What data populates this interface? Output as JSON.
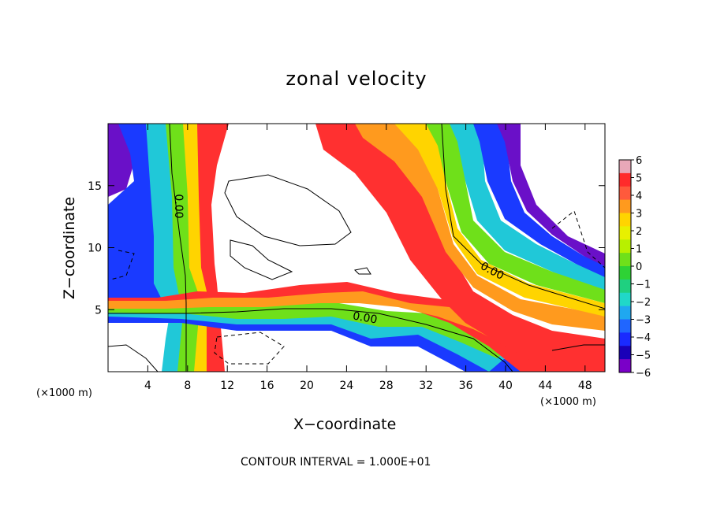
{
  "chart_data": {
    "type": "heatmap",
    "title": "zonal velocity",
    "xlabel": "X−coordinate",
    "ylabel": "Z−coordinate",
    "x_unit_label": "(×1000 m)",
    "x_ticks": [
      4,
      8,
      12,
      16,
      20,
      24,
      28,
      32,
      36,
      40,
      44,
      48
    ],
    "y_ticks": [
      5,
      10,
      15
    ],
    "xlim": [
      0,
      50
    ],
    "ylim": [
      0,
      20
    ],
    "colorbar": {
      "ticks": [
        "6",
        "5",
        "4",
        "3",
        "2",
        "1",
        "0",
        "−1",
        "−2",
        "−3",
        "−4",
        "−5",
        "−6"
      ],
      "range": [
        -6,
        6
      ],
      "colors": [
        "#e8a8b8",
        "#ff2b2b",
        "#ff5a3c",
        "#ff9a1e",
        "#ffd400",
        "#e8f000",
        "#b8f000",
        "#6fe01a",
        "#2ed235",
        "#1fd080",
        "#20d8c8",
        "#1fa8f0",
        "#2066ff",
        "#1a2aff",
        "#1a00b8",
        "#7a00c8"
      ]
    },
    "contour_labels": [
      "0.00",
      "0.00",
      "0.00"
    ],
    "contour_interval_text": "CONTOUR INTERVAL = 1.000E+01"
  }
}
